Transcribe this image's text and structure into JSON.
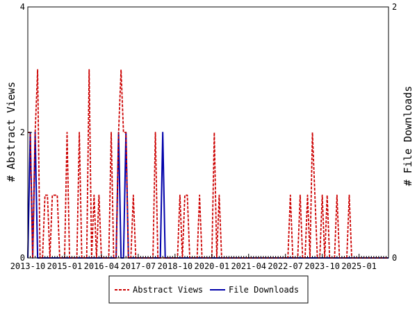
{
  "chart_data": {
    "type": "line",
    "x_axis": {
      "tick_labels": [
        "2013-10",
        "2015-01",
        "2016-04",
        "2017-07",
        "2018-10",
        "2020-01",
        "2021-04",
        "2022-07",
        "2023-10",
        "2025-01"
      ],
      "range": [
        "2013-10",
        "2026-01"
      ]
    },
    "y_left": {
      "label": "# Abstract Views",
      "range": [
        0,
        4
      ],
      "ticks": [
        "0",
        "2",
        "4"
      ]
    },
    "y_right": {
      "label": "# File Downloads",
      "range": [
        0,
        2
      ],
      "ticks": [
        "0",
        "2"
      ]
    },
    "legend": {
      "placement": "bottom"
    },
    "grid": false,
    "series": [
      {
        "name": "Abstract Views",
        "axis": "left",
        "color": "#cc0000",
        "style": "dashed",
        "points": [
          [
            "2013-10",
            2
          ],
          [
            "2013-11",
            2
          ],
          [
            "2013-12",
            0
          ],
          [
            "2014-01",
            2
          ],
          [
            "2014-02",
            3
          ],
          [
            "2014-03",
            0
          ],
          [
            "2014-04",
            0
          ],
          [
            "2014-05",
            1
          ],
          [
            "2014-06",
            1
          ],
          [
            "2014-07",
            0
          ],
          [
            "2014-08",
            1
          ],
          [
            "2014-09",
            1
          ],
          [
            "2014-10",
            1
          ],
          [
            "2014-11",
            0
          ],
          [
            "2014-12",
            0
          ],
          [
            "2015-01",
            0
          ],
          [
            "2015-02",
            2
          ],
          [
            "2015-03",
            0
          ],
          [
            "2015-04",
            0
          ],
          [
            "2015-05",
            0
          ],
          [
            "2015-06",
            0
          ],
          [
            "2015-07",
            2
          ],
          [
            "2015-08",
            0
          ],
          [
            "2015-09",
            0
          ],
          [
            "2015-10",
            0
          ],
          [
            "2015-11",
            3
          ],
          [
            "2015-12",
            0
          ],
          [
            "2016-01",
            1
          ],
          [
            "2016-02",
            0
          ],
          [
            "2016-03",
            1
          ],
          [
            "2016-04",
            0
          ],
          [
            "2016-05",
            0
          ],
          [
            "2016-06",
            0
          ],
          [
            "2016-07",
            0
          ],
          [
            "2016-08",
            2
          ],
          [
            "2016-09",
            0
          ],
          [
            "2016-10",
            0
          ],
          [
            "2016-11",
            2
          ],
          [
            "2016-12",
            3
          ],
          [
            "2017-01",
            2
          ],
          [
            "2017-02",
            2
          ],
          [
            "2017-03",
            0
          ],
          [
            "2017-04",
            0
          ],
          [
            "2017-05",
            1
          ],
          [
            "2017-06",
            0
          ],
          [
            "2017-07",
            0
          ],
          [
            "2017-08",
            0
          ],
          [
            "2017-09",
            0
          ],
          [
            "2017-10",
            0
          ],
          [
            "2017-11",
            0
          ],
          [
            "2017-12",
            0
          ],
          [
            "2018-01",
            0
          ],
          [
            "2018-02",
            2
          ],
          [
            "2018-03",
            0
          ],
          [
            "2018-04",
            0
          ],
          [
            "2018-05",
            0
          ],
          [
            "2018-06",
            0
          ],
          [
            "2018-07",
            0
          ],
          [
            "2018-08",
            0
          ],
          [
            "2018-09",
            0
          ],
          [
            "2018-10",
            0
          ],
          [
            "2018-11",
            0
          ],
          [
            "2018-12",
            1
          ],
          [
            "2019-01",
            0
          ],
          [
            "2019-02",
            1
          ],
          [
            "2019-03",
            1
          ],
          [
            "2019-04",
            0
          ],
          [
            "2019-05",
            0
          ],
          [
            "2019-06",
            0
          ],
          [
            "2019-07",
            0
          ],
          [
            "2019-08",
            1
          ],
          [
            "2019-09",
            0
          ],
          [
            "2019-10",
            0
          ],
          [
            "2019-11",
            0
          ],
          [
            "2019-12",
            0
          ],
          [
            "2020-01",
            0
          ],
          [
            "2020-02",
            2
          ],
          [
            "2020-03",
            0
          ],
          [
            "2020-04",
            1
          ],
          [
            "2020-05",
            0
          ],
          [
            "2020-06",
            0
          ],
          [
            "2020-07",
            0
          ],
          [
            "2020-08",
            0
          ],
          [
            "2020-09",
            0
          ],
          [
            "2020-10",
            0
          ],
          [
            "2020-11",
            0
          ],
          [
            "2020-12",
            0
          ],
          [
            "2021-01",
            0
          ],
          [
            "2021-02",
            0
          ],
          [
            "2021-03",
            0
          ],
          [
            "2021-04",
            0
          ],
          [
            "2021-05",
            0
          ],
          [
            "2021-06",
            0
          ],
          [
            "2021-07",
            0
          ],
          [
            "2021-08",
            0
          ],
          [
            "2021-09",
            0
          ],
          [
            "2021-10",
            0
          ],
          [
            "2021-11",
            0
          ],
          [
            "2021-12",
            0
          ],
          [
            "2022-01",
            0
          ],
          [
            "2022-02",
            0
          ],
          [
            "2022-03",
            0
          ],
          [
            "2022-04",
            0
          ],
          [
            "2022-05",
            0
          ],
          [
            "2022-06",
            0
          ],
          [
            "2022-07",
            0
          ],
          [
            "2022-08",
            0
          ],
          [
            "2022-09",
            1
          ],
          [
            "2022-10",
            0
          ],
          [
            "2022-11",
            0
          ],
          [
            "2022-12",
            0
          ],
          [
            "2023-01",
            1
          ],
          [
            "2023-02",
            0
          ],
          [
            "2023-03",
            0
          ],
          [
            "2023-04",
            1
          ],
          [
            "2023-05",
            0
          ],
          [
            "2023-06",
            2
          ],
          [
            "2023-07",
            1
          ],
          [
            "2023-08",
            0
          ],
          [
            "2023-09",
            0
          ],
          [
            "2023-10",
            1
          ],
          [
            "2023-11",
            0
          ],
          [
            "2023-12",
            1
          ],
          [
            "2024-01",
            0
          ],
          [
            "2024-02",
            0
          ],
          [
            "2024-03",
            0
          ],
          [
            "2024-04",
            1
          ],
          [
            "2024-05",
            0
          ],
          [
            "2024-06",
            0
          ],
          [
            "2024-07",
            0
          ],
          [
            "2024-08",
            0
          ],
          [
            "2024-09",
            1
          ],
          [
            "2024-10",
            0
          ],
          [
            "2024-11",
            0
          ],
          [
            "2024-12",
            0
          ],
          [
            "2025-01",
            0
          ],
          [
            "2025-02",
            0
          ],
          [
            "2025-03",
            0
          ],
          [
            "2025-04",
            0
          ],
          [
            "2025-05",
            0
          ],
          [
            "2025-06",
            0
          ],
          [
            "2025-07",
            0
          ],
          [
            "2025-08",
            0
          ],
          [
            "2025-09",
            0
          ],
          [
            "2025-10",
            0
          ],
          [
            "2025-11",
            0
          ],
          [
            "2025-12",
            0
          ],
          [
            "2026-01",
            0
          ]
        ]
      },
      {
        "name": "File Downloads",
        "axis": "right",
        "color": "#0000aa",
        "style": "solid",
        "points": [
          [
            "2013-10",
            0
          ],
          [
            "2013-11",
            1
          ],
          [
            "2013-12",
            0
          ],
          [
            "2014-01",
            1
          ],
          [
            "2014-02",
            0
          ],
          [
            "2014-03",
            0
          ],
          [
            "2014-04",
            0
          ],
          [
            "2014-05",
            0
          ],
          [
            "2014-06",
            0
          ],
          [
            "2014-07",
            0
          ],
          [
            "2014-08",
            0
          ],
          [
            "2014-09",
            0
          ],
          [
            "2014-10",
            0
          ],
          [
            "2014-11",
            0
          ],
          [
            "2014-12",
            0
          ],
          [
            "2015-01",
            0
          ],
          [
            "2015-02",
            0
          ],
          [
            "2015-03",
            0
          ],
          [
            "2015-04",
            0
          ],
          [
            "2015-05",
            0
          ],
          [
            "2015-06",
            0
          ],
          [
            "2015-07",
            0
          ],
          [
            "2015-08",
            0
          ],
          [
            "2015-09",
            0
          ],
          [
            "2015-10",
            0
          ],
          [
            "2015-11",
            0
          ],
          [
            "2015-12",
            0
          ],
          [
            "2016-01",
            0
          ],
          [
            "2016-02",
            0
          ],
          [
            "2016-03",
            0
          ],
          [
            "2016-04",
            0
          ],
          [
            "2016-05",
            0
          ],
          [
            "2016-06",
            0
          ],
          [
            "2016-07",
            0
          ],
          [
            "2016-08",
            0
          ],
          [
            "2016-09",
            0
          ],
          [
            "2016-10",
            0
          ],
          [
            "2016-11",
            1
          ],
          [
            "2016-12",
            0
          ],
          [
            "2017-01",
            0
          ],
          [
            "2017-02",
            1
          ],
          [
            "2017-03",
            0
          ],
          [
            "2017-04",
            0
          ],
          [
            "2017-05",
            0
          ],
          [
            "2017-06",
            0
          ],
          [
            "2017-07",
            0
          ],
          [
            "2017-08",
            0
          ],
          [
            "2017-09",
            0
          ],
          [
            "2017-10",
            0
          ],
          [
            "2017-11",
            0
          ],
          [
            "2017-12",
            0
          ],
          [
            "2018-01",
            0
          ],
          [
            "2018-02",
            0
          ],
          [
            "2018-03",
            0
          ],
          [
            "2018-04",
            0
          ],
          [
            "2018-05",
            1
          ],
          [
            "2018-06",
            0
          ],
          [
            "2018-07",
            0
          ],
          [
            "2018-08",
            0
          ],
          [
            "2018-09",
            0
          ],
          [
            "2018-10",
            0
          ],
          [
            "2018-11",
            0
          ],
          [
            "2018-12",
            0
          ],
          [
            "2019-01",
            0
          ],
          [
            "2019-02",
            0
          ],
          [
            "2019-03",
            0
          ],
          [
            "2019-04",
            0
          ],
          [
            "2019-05",
            0
          ],
          [
            "2019-06",
            0
          ],
          [
            "2019-07",
            0
          ],
          [
            "2019-08",
            0
          ],
          [
            "2019-09",
            0
          ],
          [
            "2019-10",
            0
          ],
          [
            "2019-11",
            0
          ],
          [
            "2019-12",
            0
          ],
          [
            "2020-01",
            0
          ],
          [
            "2020-02",
            0
          ],
          [
            "2020-03",
            0
          ],
          [
            "2020-04",
            0
          ],
          [
            "2020-05",
            0
          ],
          [
            "2020-06",
            0
          ],
          [
            "2020-07",
            0
          ],
          [
            "2020-08",
            0
          ],
          [
            "2020-09",
            0
          ],
          [
            "2020-10",
            0
          ],
          [
            "2020-11",
            0
          ],
          [
            "2020-12",
            0
          ],
          [
            "2021-01",
            0
          ],
          [
            "2021-02",
            0
          ],
          [
            "2021-03",
            0
          ],
          [
            "2021-04",
            0
          ],
          [
            "2021-05",
            0
          ],
          [
            "2021-06",
            0
          ],
          [
            "2021-07",
            0
          ],
          [
            "2021-08",
            0
          ],
          [
            "2021-09",
            0
          ],
          [
            "2021-10",
            0
          ],
          [
            "2021-11",
            0
          ],
          [
            "2021-12",
            0
          ],
          [
            "2022-01",
            0
          ],
          [
            "2022-02",
            0
          ],
          [
            "2022-03",
            0
          ],
          [
            "2022-04",
            0
          ],
          [
            "2022-05",
            0
          ],
          [
            "2022-06",
            0
          ],
          [
            "2022-07",
            0
          ],
          [
            "2022-08",
            0
          ],
          [
            "2022-09",
            0
          ],
          [
            "2022-10",
            0
          ],
          [
            "2022-11",
            0
          ],
          [
            "2022-12",
            0
          ],
          [
            "2023-01",
            0
          ],
          [
            "2023-02",
            0
          ],
          [
            "2023-03",
            0
          ],
          [
            "2023-04",
            0
          ],
          [
            "2023-05",
            0
          ],
          [
            "2023-06",
            0
          ],
          [
            "2023-07",
            0
          ],
          [
            "2023-08",
            0
          ],
          [
            "2023-09",
            0
          ],
          [
            "2023-10",
            0
          ],
          [
            "2023-11",
            0
          ],
          [
            "2023-12",
            0
          ],
          [
            "2024-01",
            0
          ],
          [
            "2024-02",
            0
          ],
          [
            "2024-03",
            0
          ],
          [
            "2024-04",
            0
          ],
          [
            "2024-05",
            0
          ],
          [
            "2024-06",
            0
          ],
          [
            "2024-07",
            0
          ],
          [
            "2024-08",
            0
          ],
          [
            "2024-09",
            0
          ],
          [
            "2024-10",
            0
          ],
          [
            "2024-11",
            0
          ],
          [
            "2024-12",
            0
          ],
          [
            "2025-01",
            0
          ],
          [
            "2025-02",
            0
          ],
          [
            "2025-03",
            0
          ],
          [
            "2025-04",
            0
          ],
          [
            "2025-05",
            0
          ],
          [
            "2025-06",
            0
          ],
          [
            "2025-07",
            0
          ],
          [
            "2025-08",
            0
          ],
          [
            "2025-09",
            0
          ],
          [
            "2025-10",
            0
          ],
          [
            "2025-11",
            0
          ],
          [
            "2025-12",
            0
          ],
          [
            "2026-01",
            0
          ]
        ]
      }
    ]
  }
}
